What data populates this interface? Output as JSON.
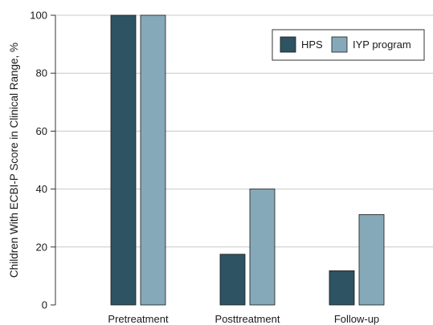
{
  "chart_data": {
    "type": "bar",
    "categories": [
      "Pretreatment",
      "Posttreatment",
      "Follow-up"
    ],
    "series": [
      {
        "name": "HPS",
        "values": [
          100,
          17.5,
          11.8
        ],
        "color": "#2e5362"
      },
      {
        "name": "IYP program",
        "values": [
          100,
          40,
          31.2
        ],
        "color": "#86a9b9"
      }
    ],
    "ylabel": "Children With ECBI-P Score in Clinical Range, %",
    "xlabel": "",
    "ylim": [
      0,
      100
    ],
    "yticks": [
      "0",
      "20",
      "40",
      "60",
      "80",
      "100"
    ],
    "grid": true,
    "legend_position": "top-right",
    "grid_color": "#c8c8c8",
    "axis_color": "#333333"
  }
}
